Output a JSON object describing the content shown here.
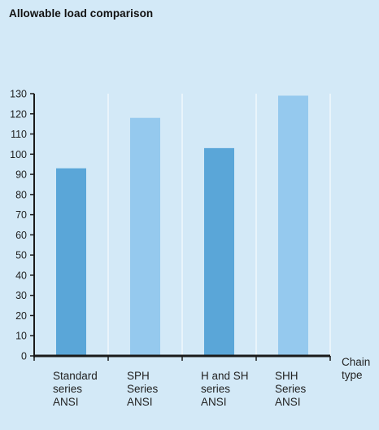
{
  "chart_data": {
    "type": "bar",
    "title": "Allowable load comparison",
    "xlabel": "Chain type",
    "ylabel": "",
    "ylim": [
      0,
      130
    ],
    "yticks": [
      0,
      10,
      20,
      30,
      40,
      50,
      60,
      70,
      80,
      90,
      100,
      110,
      120,
      130
    ],
    "grid": "vertical",
    "categories": [
      [
        "Standard",
        "series",
        "ANSI"
      ],
      [
        "SPH",
        "Series",
        "ANSI"
      ],
      [
        "H and SH",
        "series",
        "ANSI"
      ],
      [
        "SHH",
        "Series",
        "ANSI"
      ]
    ],
    "values": [
      93,
      118,
      103,
      129
    ],
    "colors": [
      "#5aa6d8",
      "#95c9ee",
      "#5aa6d8",
      "#95c9ee"
    ],
    "axis_color": "#1a1a1a",
    "grid_color": "#ffffff"
  }
}
